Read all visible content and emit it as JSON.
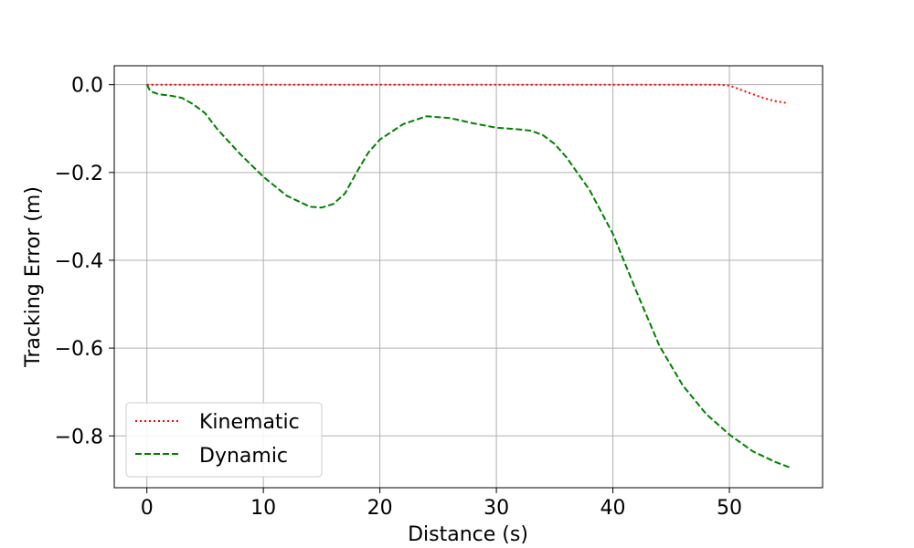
{
  "chart_data": {
    "type": "line",
    "title": "",
    "xlabel": "Distance (s)",
    "ylabel": "Tracking Error (m)",
    "xlim": [
      -2.8,
      58.0
    ],
    "ylim": [
      -0.918,
      0.043
    ],
    "xticks": [
      0,
      10,
      20,
      30,
      40,
      50
    ],
    "xtick_labels": [
      "0",
      "10",
      "20",
      "30",
      "40",
      "50"
    ],
    "yticks": [
      0.0,
      -0.2,
      -0.4,
      -0.6,
      -0.8
    ],
    "ytick_labels": [
      "0.0",
      "−0.2",
      "−0.4",
      "−0.6",
      "−0.8"
    ],
    "grid": true,
    "legend_position": "lower-left",
    "series": [
      {
        "name": "Kinematic",
        "color": "#ff0000",
        "style": "dotted",
        "x": [
          0,
          5,
          10,
          15,
          20,
          25,
          30,
          35,
          40,
          45,
          48,
          49,
          50,
          51,
          52,
          53,
          54,
          55
        ],
        "y": [
          0,
          0,
          0,
          0,
          0,
          0,
          0,
          0,
          0,
          0,
          0,
          0,
          -0.002,
          -0.012,
          -0.022,
          -0.031,
          -0.038,
          -0.042
        ]
      },
      {
        "name": "Dynamic",
        "color": "#008000",
        "style": "dashed",
        "x": [
          0,
          0.3,
          1,
          2,
          3,
          4,
          5,
          6,
          8,
          10,
          12,
          14,
          15,
          16,
          17,
          18,
          19,
          20,
          22,
          24,
          26,
          28,
          30,
          32,
          33,
          34,
          35,
          36,
          38,
          40,
          42,
          44,
          46,
          48,
          50,
          52,
          54,
          55.2
        ],
        "y": [
          0,
          -0.015,
          -0.022,
          -0.025,
          -0.03,
          -0.045,
          -0.065,
          -0.1,
          -0.158,
          -0.21,
          -0.253,
          -0.278,
          -0.28,
          -0.272,
          -0.248,
          -0.2,
          -0.155,
          -0.125,
          -0.09,
          -0.072,
          -0.076,
          -0.088,
          -0.098,
          -0.102,
          -0.105,
          -0.115,
          -0.135,
          -0.165,
          -0.24,
          -0.34,
          -0.47,
          -0.595,
          -0.685,
          -0.75,
          -0.797,
          -0.835,
          -0.86,
          -0.872
        ]
      }
    ]
  }
}
